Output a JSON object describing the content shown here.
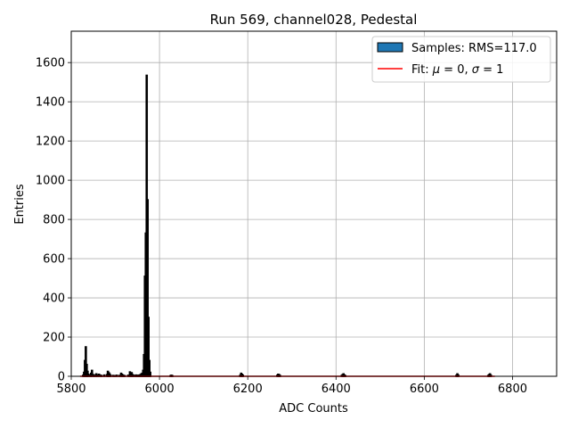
{
  "chart_data": {
    "type": "bar",
    "title": "Run 569, channel028, Pedestal",
    "xlabel": "ADC Counts",
    "ylabel": "Entries",
    "xlim": [
      5800,
      6900
    ],
    "ylim": [
      0,
      1760
    ],
    "xticks": [
      5800,
      6000,
      6200,
      6400,
      6600,
      6800
    ],
    "yticks": [
      0,
      200,
      400,
      600,
      800,
      1000,
      1200,
      1400,
      1600
    ],
    "grid": true,
    "legend_position": "top-right",
    "legend": [
      {
        "label": "Samples: RMS=117.0",
        "kind": "patch",
        "color": "#1f77b4"
      },
      {
        "label_prefix": "Fit: ",
        "mu_symbol": "μ",
        "mu_value": " = 0, ",
        "sigma_symbol": "σ",
        "sigma_value": " = 1",
        "kind": "line",
        "color": "#ff0000"
      }
    ],
    "series": [
      {
        "name": "Samples: RMS=117.0",
        "type": "histogram",
        "bin_width": 2,
        "edge_color": "#000000",
        "fill_color": "#1f77b4",
        "x": [
          5827,
          5829,
          5831,
          5833,
          5835,
          5837,
          5839,
          5843,
          5845,
          5847,
          5851,
          5853,
          5857,
          5859,
          5863,
          5867,
          5869,
          5875,
          5881,
          5883,
          5885,
          5887,
          5889,
          5895,
          5899,
          5903,
          5909,
          5913,
          5915,
          5917,
          5919,
          5921,
          5929,
          5933,
          5935,
          5937,
          5939,
          5941,
          5945,
          5947,
          5949,
          5951,
          5953,
          5955,
          5957,
          5959,
          5961,
          5963,
          5965,
          5967,
          5969,
          5971,
          5973,
          5975,
          5977,
          5979,
          6025,
          6027,
          6029,
          6183,
          6185,
          6187,
          6189,
          6267,
          6269,
          6271,
          6273,
          6413,
          6415,
          6417,
          6419,
          6421,
          6673,
          6675,
          6677,
          6745,
          6747,
          6749,
          6751
        ],
        "y": [
          5,
          20,
          80,
          150,
          60,
          25,
          10,
          5,
          15,
          30,
          8,
          4,
          12,
          6,
          10,
          5,
          3,
          6,
          8,
          25,
          18,
          12,
          5,
          4,
          3,
          5,
          4,
          15,
          10,
          6,
          4,
          3,
          5,
          22,
          15,
          18,
          8,
          5,
          4,
          6,
          3,
          5,
          4,
          6,
          8,
          12,
          15,
          30,
          110,
          510,
          730,
          1535,
          900,
          300,
          80,
          20,
          3,
          5,
          3,
          5,
          15,
          10,
          5,
          5,
          10,
          8,
          4,
          4,
          8,
          12,
          6,
          3,
          5,
          12,
          6,
          4,
          8,
          12,
          5
        ]
      },
      {
        "name": "Fit",
        "type": "line",
        "color": "#ff0000",
        "x": [
          5820,
          6760
        ],
        "y": [
          0,
          0
        ]
      }
    ]
  }
}
